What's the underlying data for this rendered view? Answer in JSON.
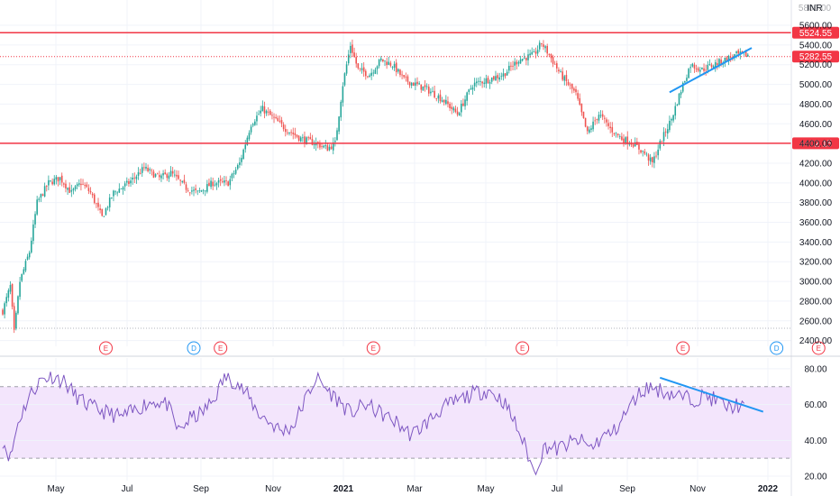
{
  "currency": "INR",
  "price_scale_top": "5800.00",
  "chart_data": [
    {
      "type": "candlestick",
      "y_ticks": [
        2400,
        2600,
        2800,
        3000,
        3200,
        3400,
        3600,
        3800,
        4000,
        4200,
        4400,
        4600,
        4800,
        5000,
        5200,
        5400,
        5600
      ],
      "ylim": [
        2360,
        5820
      ],
      "x_tick_labels": [
        "May",
        "Jul",
        "Sep",
        "Nov",
        "2021",
        "Mar",
        "May",
        "Jul",
        "Sep",
        "Nov",
        "2022"
      ],
      "key_points": [
        [
          0,
          2700
        ],
        [
          4,
          2950
        ],
        [
          6,
          2480
        ],
        [
          9,
          3000
        ],
        [
          14,
          3300
        ],
        [
          18,
          3800
        ],
        [
          24,
          4000
        ],
        [
          30,
          4050
        ],
        [
          36,
          3900
        ],
        [
          41,
          4000
        ],
        [
          46,
          3900
        ],
        [
          52,
          3650
        ],
        [
          58,
          3900
        ],
        [
          66,
          4000
        ],
        [
          74,
          4150
        ],
        [
          82,
          4050
        ],
        [
          88,
          4100
        ],
        [
          96,
          3950
        ],
        [
          102,
          3900
        ],
        [
          110,
          4000
        ],
        [
          118,
          4000
        ],
        [
          124,
          4200
        ],
        [
          130,
          4600
        ],
        [
          136,
          4750
        ],
        [
          142,
          4650
        ],
        [
          148,
          4550
        ],
        [
          156,
          4450
        ],
        [
          164,
          4400
        ],
        [
          170,
          4350
        ],
        [
          174,
          4400
        ],
        [
          178,
          5000
        ],
        [
          182,
          5400
        ],
        [
          186,
          5150
        ],
        [
          192,
          5100
        ],
        [
          198,
          5250
        ],
        [
          204,
          5200
        ],
        [
          210,
          5050
        ],
        [
          216,
          5000
        ],
        [
          222,
          4950
        ],
        [
          230,
          4850
        ],
        [
          238,
          4700
        ],
        [
          246,
          5000
        ],
        [
          254,
          5050
        ],
        [
          262,
          5100
        ],
        [
          270,
          5250
        ],
        [
          278,
          5300
        ],
        [
          282,
          5420
        ],
        [
          286,
          5300
        ],
        [
          292,
          5100
        ],
        [
          300,
          4900
        ],
        [
          306,
          4500
        ],
        [
          312,
          4700
        ],
        [
          318,
          4550
        ],
        [
          324,
          4450
        ],
        [
          330,
          4400
        ],
        [
          336,
          4300
        ],
        [
          340,
          4200
        ],
        [
          344,
          4400
        ],
        [
          350,
          4650
        ],
        [
          356,
          5000
        ],
        [
          360,
          5200
        ],
        [
          366,
          5150
        ],
        [
          372,
          5200
        ],
        [
          378,
          5250
        ],
        [
          384,
          5300
        ],
        [
          390,
          5300
        ]
      ],
      "levels": [
        {
          "value": 5524.55,
          "label": "5524.55",
          "color": "#f23645"
        },
        {
          "value": 5282.55,
          "label": "5282.55",
          "color": "#f23645",
          "style": "dotted"
        },
        {
          "value": 4402.15,
          "label": "4402.15",
          "color": "#f23645"
        }
      ],
      "trendline": {
        "from": [
          349,
          4920
        ],
        "to": [
          392,
          5370
        ],
        "color": "#2196f3"
      },
      "events": [
        {
          "bar": 54,
          "text": "E",
          "kind": "earnings"
        },
        {
          "bar": 100,
          "text": "D",
          "kind": "dividend"
        },
        {
          "bar": 114,
          "text": "E",
          "kind": "earnings"
        },
        {
          "bar": 194,
          "text": "E",
          "kind": "earnings"
        },
        {
          "bar": 272,
          "text": "E",
          "kind": "earnings"
        },
        {
          "bar": 356,
          "text": "E",
          "kind": "earnings"
        },
        {
          "bar": 405,
          "text": "D",
          "kind": "dividend"
        },
        {
          "bar": 427,
          "text": "E",
          "kind": "earnings"
        }
      ],
      "colors": {
        "up": "#26a69a",
        "down": "#ef5350",
        "earnings": "#f23645",
        "dividend": "#2196f3"
      }
    },
    {
      "type": "line",
      "y_ticks": [
        20,
        40,
        60,
        80
      ],
      "ylim": [
        18,
        86
      ],
      "band": [
        30,
        70
      ],
      "key_points": [
        [
          0,
          40
        ],
        [
          4,
          30
        ],
        [
          8,
          50
        ],
        [
          14,
          65
        ],
        [
          20,
          74
        ],
        [
          26,
          76
        ],
        [
          32,
          73
        ],
        [
          38,
          65
        ],
        [
          44,
          60
        ],
        [
          50,
          57
        ],
        [
          56,
          55
        ],
        [
          62,
          53
        ],
        [
          68,
          56
        ],
        [
          74,
          60
        ],
        [
          80,
          62
        ],
        [
          86,
          60
        ],
        [
          92,
          45
        ],
        [
          98,
          52
        ],
        [
          104,
          55
        ],
        [
          110,
          62
        ],
        [
          116,
          75
        ],
        [
          122,
          73
        ],
        [
          128,
          65
        ],
        [
          134,
          55
        ],
        [
          140,
          50
        ],
        [
          146,
          45
        ],
        [
          152,
          48
        ],
        [
          158,
          62
        ],
        [
          164,
          75
        ],
        [
          170,
          68
        ],
        [
          176,
          62
        ],
        [
          182,
          55
        ],
        [
          190,
          60
        ],
        [
          198,
          55
        ],
        [
          206,
          50
        ],
        [
          214,
          43
        ],
        [
          222,
          50
        ],
        [
          230,
          58
        ],
        [
          238,
          62
        ],
        [
          246,
          66
        ],
        [
          254,
          68
        ],
        [
          262,
          62
        ],
        [
          268,
          50
        ],
        [
          274,
          35
        ],
        [
          278,
          22
        ],
        [
          284,
          37
        ],
        [
          290,
          35
        ],
        [
          296,
          38
        ],
        [
          302,
          40
        ],
        [
          308,
          36
        ],
        [
          314,
          42
        ],
        [
          320,
          45
        ],
        [
          326,
          55
        ],
        [
          332,
          65
        ],
        [
          338,
          70
        ],
        [
          344,
          68
        ],
        [
          350,
          66
        ],
        [
          356,
          64
        ],
        [
          362,
          63
        ],
        [
          368,
          65
        ],
        [
          374,
          62
        ],
        [
          380,
          58
        ],
        [
          384,
          60
        ],
        [
          388,
          58
        ]
      ],
      "trendline": {
        "from": [
          344,
          75
        ],
        "to": [
          398,
          56
        ],
        "color": "#2196f3"
      },
      "line_color": "#7e57c2",
      "band_color": "#f3e5fc"
    }
  ]
}
